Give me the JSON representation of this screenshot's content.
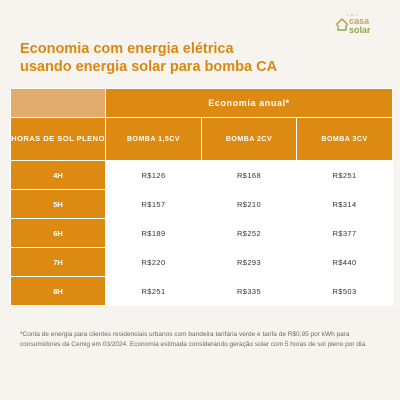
{
  "logo": {
    "small": "• •• •",
    "casa": "casa",
    "solar": "solar"
  },
  "title": {
    "line1": "Economia com energia elétrica",
    "line2": "usando energia solar para bomba CA"
  },
  "table": {
    "group_header": "Economia anual*",
    "hours_header": "HORAS DE SOL PLENO",
    "pumps": [
      "BOMBA 1,5CV",
      "BOMBA 2CV",
      "BOMBA 3CV"
    ],
    "rows": [
      {
        "hours": "4H",
        "values": [
          "R$126",
          "R$168",
          "R$251"
        ]
      },
      {
        "hours": "5H",
        "values": [
          "R$157",
          "R$210",
          "R$314"
        ]
      },
      {
        "hours": "6H",
        "values": [
          "R$189",
          "R$252",
          "R$377"
        ]
      },
      {
        "hours": "7H",
        "values": [
          "R$220",
          "R$293",
          "R$440"
        ]
      },
      {
        "hours": "8H",
        "values": [
          "R$251",
          "R$335",
          "R$503"
        ]
      }
    ]
  },
  "footnote": "*Conta de energia para clientes residenciais urbanos com bandeira tarifária verde e tarifa de R$0,95 por kWh para consumidores da Cemig em 03/2024. Economia estimada considerando geração solar com 5 horas de sol pleno por dia."
}
